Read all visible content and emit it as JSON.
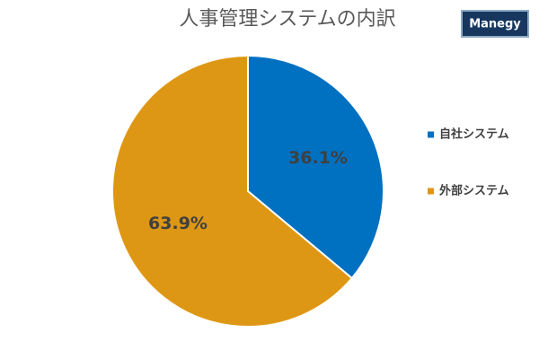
{
  "chart_data": {
    "type": "pie",
    "title": "人事管理システムの内訳",
    "categories": [
      "自社システム",
      "外部システム"
    ],
    "values": [
      36.1,
      63.9
    ],
    "value_labels": [
      "36.1%",
      "63.9%"
    ],
    "colors": [
      "#0070c0",
      "#de9714"
    ],
    "legend": "right"
  },
  "logo": "Manegy"
}
